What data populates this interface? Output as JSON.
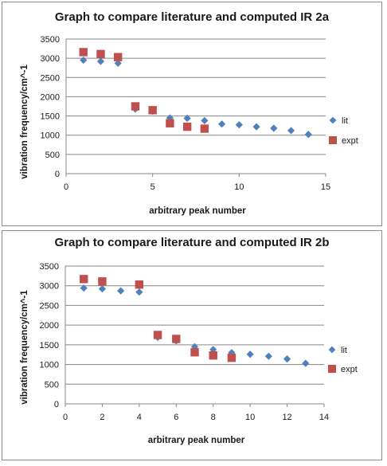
{
  "colors": {
    "lit": "#4f81bd",
    "expt": "#c0504d",
    "grid": "#868686",
    "axis": "#868686"
  },
  "chart_data": [
    {
      "type": "scatter",
      "title": "Graph to compare literature and computed IR 2a",
      "xlabel": "arbitrary peak number",
      "ylabel": "vibration frequency/cm^-1",
      "xlim": [
        0,
        15
      ],
      "ylim": [
        0,
        3500
      ],
      "xticks": [
        0,
        5,
        10,
        15
      ],
      "yticks": [
        0,
        500,
        1000,
        1500,
        2000,
        2500,
        3000,
        3500
      ],
      "grid": "horizontal",
      "legend": "right",
      "series": [
        {
          "name": "lit",
          "marker": "diamond",
          "x": [
            1,
            2,
            3,
            4,
            5,
            6,
            7,
            8,
            9,
            10,
            11,
            12,
            13,
            14
          ],
          "y": [
            2950,
            2920,
            2870,
            1680,
            1620,
            1450,
            1440,
            1380,
            1290,
            1270,
            1220,
            1180,
            1120,
            1020
          ]
        },
        {
          "name": "expt",
          "marker": "square",
          "x": [
            1,
            2,
            3,
            4,
            5,
            6,
            7,
            8
          ],
          "y": [
            3160,
            3110,
            3030,
            1750,
            1650,
            1310,
            1220,
            1170
          ]
        }
      ]
    },
    {
      "type": "scatter",
      "title": "Graph to compare literature and computed IR 2b",
      "xlabel": "arbitrary peak number",
      "ylabel": "vibration frequency/cm^-1",
      "xlim": [
        0,
        14
      ],
      "ylim": [
        0,
        3500
      ],
      "xticks": [
        0,
        2,
        4,
        6,
        8,
        10,
        12,
        14
      ],
      "yticks": [
        0,
        500,
        1000,
        1500,
        2000,
        2500,
        3000,
        3500
      ],
      "grid": "horizontal",
      "legend": "right",
      "series": [
        {
          "name": "lit",
          "marker": "diamond",
          "x": [
            1,
            2,
            3,
            4,
            5,
            6,
            7,
            8,
            9,
            10,
            11,
            12,
            13
          ],
          "y": [
            2940,
            2920,
            2870,
            2840,
            1690,
            1600,
            1450,
            1380,
            1300,
            1260,
            1210,
            1140,
            1030
          ]
        },
        {
          "name": "expt",
          "marker": "square",
          "x": [
            1,
            2,
            4,
            5,
            6,
            7,
            8,
            9
          ],
          "y": [
            3170,
            3110,
            3030,
            1750,
            1650,
            1310,
            1230,
            1170
          ]
        }
      ]
    }
  ]
}
